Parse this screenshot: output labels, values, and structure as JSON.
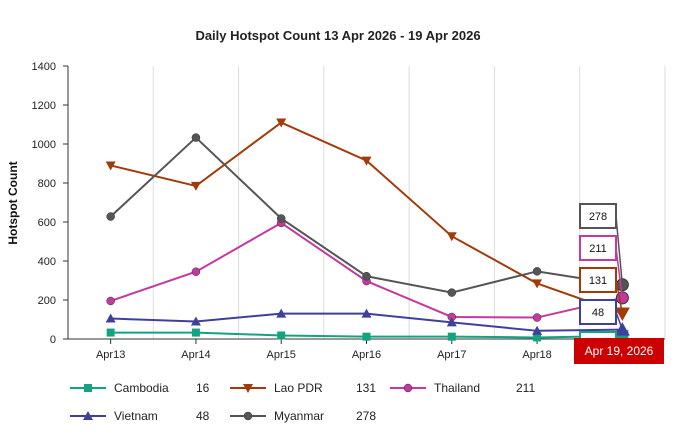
{
  "chart_data": {
    "type": "line",
    "title": "Daily Hotspot Count 13 Apr 2026 - 19 Apr 2026",
    "xlabel": "",
    "ylabel": "Hotspot Count",
    "categories": [
      "Apr13",
      "Apr14",
      "Apr15",
      "Apr16",
      "Apr17",
      "Apr18",
      "Apr19"
    ],
    "ylim": [
      0,
      1400
    ],
    "yticks": [
      0,
      200,
      400,
      600,
      800,
      1000,
      1200,
      1400
    ],
    "grid": "vertical",
    "legend_position": "bottom",
    "hover_date": "Apr 19, 2026",
    "series": [
      {
        "name": "Cambodia",
        "color": "#14a37f",
        "marker": "square",
        "values": [
          33,
          33,
          18,
          12,
          12,
          8,
          16
        ],
        "last": "16"
      },
      {
        "name": "Lao PDR",
        "color": "#a13b0a",
        "marker": "triangle-down",
        "values": [
          890,
          785,
          1110,
          915,
          527,
          285,
          131
        ],
        "last": "131"
      },
      {
        "name": "Thailand",
        "color": "#c2399f",
        "marker": "circle",
        "values": [
          195,
          345,
          595,
          297,
          113,
          110,
          211
        ],
        "last": "211"
      },
      {
        "name": "Vietnam",
        "color": "#3f3f9e",
        "marker": "triangle-up",
        "values": [
          105,
          90,
          130,
          130,
          85,
          42,
          48
        ],
        "last": "48"
      },
      {
        "name": "Myanmar",
        "color": "#555555",
        "marker": "circle",
        "values": [
          628,
          1033,
          618,
          322,
          238,
          347,
          278
        ],
        "last": "278"
      }
    ]
  }
}
